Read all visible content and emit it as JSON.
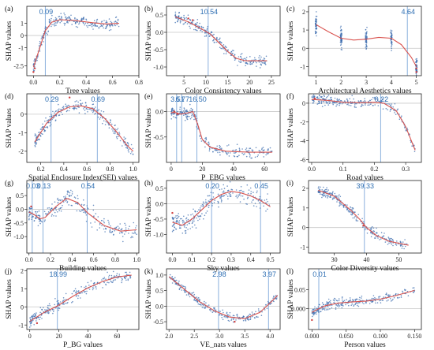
{
  "chart_data": [
    {
      "type": "scatter",
      "panel": "(a)",
      "xlabel": "Tree values",
      "ylabel": "SHAP values",
      "xlim": [
        -0.05,
        0.8
      ],
      "ylim": [
        -3.3,
        2.4
      ],
      "xticks": [
        0.0,
        0.2,
        0.4,
        0.6,
        0.8
      ],
      "xtick_labels": [
        "0.0",
        "0.2",
        "0.4",
        "0.6",
        "0.8"
      ],
      "yticks": [
        1,
        0,
        -1,
        -2.5
      ],
      "ytick_labels": [
        "1",
        "0",
        "-1",
        "-2.5"
      ],
      "vlines": [
        0.09
      ],
      "vline_labels": [
        "0.09"
      ],
      "fit_curve": [
        [
          0.0,
          -2.6
        ],
        [
          0.04,
          -1.3
        ],
        [
          0.09,
          0.4
        ],
        [
          0.14,
          1.1
        ],
        [
          0.2,
          1.3
        ],
        [
          0.3,
          1.25
        ],
        [
          0.45,
          1.05
        ],
        [
          0.55,
          0.95
        ],
        [
          0.65,
          1.0
        ]
      ],
      "scatter_spread": 0.45,
      "highlight_points": [
        [
          0.0,
          -3.0
        ],
        [
          0.01,
          -2.7
        ]
      ]
    },
    {
      "type": "scatter",
      "panel": "(b)",
      "xlabel": "Color Consistency values",
      "ylabel": "SHAP values",
      "xlim": [
        1,
        27
      ],
      "ylim": [
        -1.25,
        0.75
      ],
      "xticks": [
        5,
        10,
        15,
        20,
        25
      ],
      "xtick_labels": [
        "5",
        "10",
        "15",
        "20",
        "25"
      ],
      "yticks": [
        0.5,
        0.0,
        -0.5,
        -1.0
      ],
      "ytick_labels": [
        "0.5",
        "0.0",
        "-0.5",
        "-1.0"
      ],
      "vlines": [
        10.54
      ],
      "vline_labels": [
        "10.54"
      ],
      "fit_curve": [
        [
          3,
          0.45
        ],
        [
          6,
          0.3
        ],
        [
          9,
          0.1
        ],
        [
          11,
          -0.05
        ],
        [
          13,
          -0.3
        ],
        [
          15,
          -0.55
        ],
        [
          17,
          -0.75
        ],
        [
          19,
          -0.82
        ],
        [
          22,
          -0.82
        ],
        [
          24,
          -0.82
        ]
      ],
      "scatter_spread": 0.15,
      "highlight_points": [
        [
          6,
          0.4
        ],
        [
          7,
          0.35
        ]
      ]
    },
    {
      "type": "scatter",
      "panel": "(c)",
      "xlabel": "Architectural Aesthetics values",
      "ylabel": "SHAP values",
      "xlim": [
        0.7,
        5.2
      ],
      "ylim": [
        -1.5,
        2.3
      ],
      "xticks": [
        1,
        2,
        3,
        4,
        5
      ],
      "xtick_labels": [
        "1",
        "2",
        "3",
        "4",
        "5"
      ],
      "yticks": [
        2,
        1,
        0,
        -1
      ],
      "ytick_labels": [
        "2",
        "1",
        "0",
        "-1"
      ],
      "vlines": [
        4.64
      ],
      "vline_labels": [
        "4.64"
      ],
      "fit_curve": [
        [
          1,
          1.3
        ],
        [
          1.5,
          0.9
        ],
        [
          2,
          0.55
        ],
        [
          2.5,
          0.45
        ],
        [
          3,
          0.5
        ],
        [
          3.5,
          0.6
        ],
        [
          4,
          0.55
        ],
        [
          4.4,
          0.2
        ],
        [
          4.8,
          -0.5
        ],
        [
          5,
          -1.0
        ]
      ],
      "scatter_spread": 0.5,
      "discrete_x": [
        1,
        2,
        3,
        4,
        5
      ],
      "highlight_points": [
        [
          5,
          -1.1
        ],
        [
          5,
          -1.3
        ]
      ]
    },
    {
      "type": "scatter",
      "panel": "(d)",
      "xlabel": "Spatial Enclosure Index(SEI) values",
      "ylabel": "SHAP values",
      "xlim": [
        0.08,
        1.05
      ],
      "ylim": [
        -2.6,
        1.1
      ],
      "xticks": [
        0.2,
        0.4,
        0.6,
        0.8,
        1.0
      ],
      "xtick_labels": [
        "0.2",
        "0.4",
        "0.6",
        "0.8",
        "1.0"
      ],
      "yticks": [
        0,
        -1,
        -2
      ],
      "ytick_labels": [
        "0",
        "-1",
        "-2"
      ],
      "vlines": [
        0.29,
        0.69
      ],
      "vline_labels": [
        "0.29",
        "0.69"
      ],
      "fit_curve": [
        [
          0.15,
          -1.5
        ],
        [
          0.25,
          -0.5
        ],
        [
          0.35,
          0.1
        ],
        [
          0.45,
          0.4
        ],
        [
          0.55,
          0.45
        ],
        [
          0.65,
          0.3
        ],
        [
          0.75,
          -0.2
        ],
        [
          0.85,
          -0.9
        ],
        [
          0.95,
          -1.7
        ],
        [
          1.0,
          -2.0
        ]
      ],
      "scatter_spread": 0.35,
      "highlight_points": [
        [
          0.45,
          0.9
        ]
      ]
    },
    {
      "type": "scatter",
      "panel": "(e)",
      "xlabel": "P_EBG values",
      "ylabel": "SHAP values",
      "xlim": [
        -3,
        70
      ],
      "ylim": [
        -1.0,
        0.35
      ],
      "xticks": [
        0,
        20,
        40,
        60
      ],
      "xtick_labels": [
        "0",
        "20",
        "40",
        "60"
      ],
      "yticks": [
        0.0,
        -0.5
      ],
      "ytick_labels": [
        "0.0",
        "-0.5"
      ],
      "vlines": [
        3.51,
        6.77,
        16.5
      ],
      "vline_labels": [
        "3.51",
        "6.77",
        "16.50"
      ],
      "fit_curve": [
        [
          0,
          -0.02
        ],
        [
          3,
          -0.02
        ],
        [
          6,
          -0.05
        ],
        [
          10,
          -0.03
        ],
        [
          14,
          0.0
        ],
        [
          17,
          -0.25
        ],
        [
          20,
          -0.55
        ],
        [
          25,
          -0.7
        ],
        [
          35,
          -0.78
        ],
        [
          50,
          -0.8
        ],
        [
          65,
          -0.8
        ]
      ],
      "scatter_spread": 0.1,
      "highlight_points": [
        [
          2,
          0.0
        ],
        [
          4,
          -0.05
        ]
      ]
    },
    {
      "type": "scatter",
      "panel": "(f)",
      "xlabel": "Road values",
      "ylabel": "SHAP values",
      "xlim": [
        -0.01,
        0.35
      ],
      "ylim": [
        -6.3,
        1.0
      ],
      "xticks": [
        0.0,
        0.1,
        0.2,
        0.3
      ],
      "xtick_labels": [
        "0.0",
        "0.1",
        "0.2",
        "0.3"
      ],
      "yticks": [
        0,
        -2,
        -4,
        -6
      ],
      "ytick_labels": [
        "0",
        "-2",
        "-4",
        "-6"
      ],
      "vlines": [
        0.22
      ],
      "vline_labels": [
        "0.22"
      ],
      "fit_curve": [
        [
          0.0,
          0.4
        ],
        [
          0.05,
          0.3
        ],
        [
          0.1,
          0.1
        ],
        [
          0.15,
          0.05
        ],
        [
          0.2,
          0.1
        ],
        [
          0.23,
          0.0
        ],
        [
          0.27,
          -0.8
        ],
        [
          0.3,
          -2.5
        ],
        [
          0.33,
          -5.0
        ]
      ],
      "scatter_spread": 0.5,
      "highlight_points": [
        [
          0.01,
          0.5
        ]
      ]
    },
    {
      "type": "scatter",
      "panel": "(g)",
      "xlabel": "Building values",
      "ylabel": "SHAP values",
      "xlim": [
        -0.02,
        1.02
      ],
      "ylim": [
        -1.6,
        1.05
      ],
      "xticks": [
        0.0,
        0.2,
        0.4,
        0.6,
        0.8,
        1.0
      ],
      "xtick_labels": [
        "0.0",
        "0.2",
        "0.4",
        "0.6",
        "0.8",
        "1.0"
      ],
      "yticks": [
        0.5,
        0.0,
        -0.5,
        -1.0
      ],
      "ytick_labels": [
        "0.5",
        "0.0",
        "-0.5",
        "-1.0"
      ],
      "vlines": [
        0.03,
        0.13,
        0.54
      ],
      "vline_labels": [
        "0.03",
        "0.13",
        "0.54"
      ],
      "fit_curve": [
        [
          0.0,
          -0.1
        ],
        [
          0.05,
          -0.2
        ],
        [
          0.1,
          -0.35
        ],
        [
          0.15,
          -0.3
        ],
        [
          0.25,
          0.1
        ],
        [
          0.35,
          0.4
        ],
        [
          0.45,
          0.25
        ],
        [
          0.55,
          -0.15
        ],
        [
          0.7,
          -0.6
        ],
        [
          0.85,
          -0.8
        ],
        [
          1.0,
          -0.75
        ]
      ],
      "scatter_spread": 0.3,
      "highlight_points": [
        [
          0.02,
          0.1
        ]
      ]
    },
    {
      "type": "scatter",
      "panel": "(h)",
      "xlabel": "Sky values",
      "ylabel": "SHAP values",
      "xlim": [
        -0.03,
        0.55
      ],
      "ylim": [
        -1.6,
        0.75
      ],
      "xticks": [
        0.0,
        0.1,
        0.2,
        0.3,
        0.4,
        0.5
      ],
      "xtick_labels": [
        "0.0",
        "0.1",
        "0.2",
        "0.3",
        "0.4",
        "0.5"
      ],
      "yticks": [
        0.5,
        0.0,
        -0.5,
        -1.0
      ],
      "ytick_labels": [
        "0.5",
        "0.0",
        "-0.5",
        "-1.0"
      ],
      "vlines": [
        0.2,
        0.45
      ],
      "vline_labels": [
        "0.20",
        "0.45"
      ],
      "fit_curve": [
        [
          0.0,
          -0.6
        ],
        [
          0.05,
          -0.7
        ],
        [
          0.1,
          -0.5
        ],
        [
          0.15,
          -0.2
        ],
        [
          0.2,
          0.1
        ],
        [
          0.25,
          0.3
        ],
        [
          0.3,
          0.4
        ],
        [
          0.35,
          0.35
        ],
        [
          0.4,
          0.25
        ],
        [
          0.45,
          0.1
        ],
        [
          0.5,
          -0.1
        ]
      ],
      "scatter_spread": 0.3,
      "highlight_points": [
        [
          0.0,
          -0.3
        ]
      ]
    },
    {
      "type": "scatter",
      "panel": "(i)",
      "xlabel": "Color Diversity values",
      "ylabel": "SHAP values",
      "xlim": [
        22,
        57
      ],
      "ylim": [
        -1.3,
        2.4
      ],
      "xticks": [
        30,
        40,
        50
      ],
      "xtick_labels": [
        "30",
        "40",
        "50"
      ],
      "yticks": [
        2,
        1,
        0,
        -1
      ],
      "ytick_labels": [
        "2",
        "1",
        "0",
        "-1"
      ],
      "vlines": [
        39.33
      ],
      "vline_labels": [
        "39.33"
      ],
      "fit_curve": [
        [
          25,
          1.9
        ],
        [
          30,
          1.6
        ],
        [
          35,
          0.9
        ],
        [
          38,
          0.4
        ],
        [
          40,
          0.0
        ],
        [
          43,
          -0.4
        ],
        [
          47,
          -0.7
        ],
        [
          50,
          -0.8
        ],
        [
          53,
          -0.9
        ]
      ],
      "scatter_spread": 0.25,
      "highlight_points": [
        [
          39,
          0.1
        ]
      ]
    },
    {
      "type": "scatter",
      "panel": "(j)",
      "xlabel": "P_BG values",
      "ylabel": "SHAP values",
      "xlim": [
        -2,
        75
      ],
      "ylim": [
        -1.25,
        2.1
      ],
      "xticks": [
        0,
        20,
        40,
        60
      ],
      "xtick_labels": [
        "0",
        "20",
        "40",
        "60"
      ],
      "yticks": [
        2,
        1,
        0,
        -1
      ],
      "ytick_labels": [
        "2",
        "1",
        "0",
        "-1"
      ],
      "vlines": [
        18.99
      ],
      "vline_labels": [
        "18.99"
      ],
      "fit_curve": [
        [
          0,
          -0.8
        ],
        [
          10,
          -0.3
        ],
        [
          19,
          0.05
        ],
        [
          30,
          0.6
        ],
        [
          40,
          1.05
        ],
        [
          50,
          1.4
        ],
        [
          60,
          1.65
        ],
        [
          70,
          1.75
        ]
      ],
      "scatter_spread": 0.3,
      "highlight_points": [
        [
          5,
          -0.9
        ]
      ]
    },
    {
      "type": "scatter",
      "panel": "(k)",
      "xlabel": "VE_nats values",
      "ylabel": "SHAP values",
      "xlim": [
        1.95,
        4.2
      ],
      "ylim": [
        -0.75,
        1.2
      ],
      "xticks": [
        2.0,
        2.5,
        3.0,
        3.5,
        4.0
      ],
      "xtick_labels": [
        "2.0",
        "2.5",
        "3.0",
        "3.5",
        "4.0"
      ],
      "yticks": [
        1.0,
        0.5,
        0.0,
        -0.5
      ],
      "ytick_labels": [
        "1.0",
        "0.5",
        "0.0",
        "-0.5"
      ],
      "vlines": [
        2.98,
        3.97
      ],
      "vline_labels": [
        "2.98",
        "3.97"
      ],
      "fit_curve": [
        [
          2.0,
          0.95
        ],
        [
          2.3,
          0.55
        ],
        [
          2.6,
          0.15
        ],
        [
          2.9,
          -0.15
        ],
        [
          3.2,
          -0.35
        ],
        [
          3.5,
          -0.4
        ],
        [
          3.8,
          -0.2
        ],
        [
          4.0,
          0.1
        ],
        [
          4.15,
          0.35
        ]
      ],
      "scatter_spread": 0.12,
      "highlight_points": [
        [
          3.3,
          -0.5
        ]
      ]
    },
    {
      "type": "scatter",
      "panel": "(l)",
      "xlabel": "Person values",
      "ylabel": "SHAP values",
      "xlim": [
        -0.005,
        0.16
      ],
      "ylim": [
        -0.055,
        0.105
      ],
      "xticks": [
        0.0,
        0.05,
        0.1,
        0.15
      ],
      "xtick_labels": [
        "0.000",
        "0.050",
        "0.100",
        "0.150"
      ],
      "yticks": [
        0.05,
        0.0
      ],
      "ytick_labels": [
        "0.05",
        "0.000"
      ],
      "vlines": [
        0.01
      ],
      "vline_labels": [
        "0.01"
      ],
      "fit_curve": [
        [
          0.0,
          -0.01
        ],
        [
          0.01,
          0.0
        ],
        [
          0.02,
          0.008
        ],
        [
          0.04,
          0.015
        ],
        [
          0.06,
          0.018
        ],
        [
          0.08,
          0.02
        ],
        [
          0.1,
          0.025
        ],
        [
          0.12,
          0.033
        ],
        [
          0.15,
          0.048
        ]
      ],
      "scatter_spread": 0.012,
      "highlight_points": [
        [
          0.0,
          -0.03
        ]
      ]
    }
  ],
  "colors": {
    "points": "#3f6fb0",
    "highlight": "#d04040",
    "fit_line": "#d9534f",
    "vline": "#7da7d9",
    "vlabel": "#2f6fb3",
    "zero_line": "#c8c8c8",
    "axis": "#222222"
  }
}
